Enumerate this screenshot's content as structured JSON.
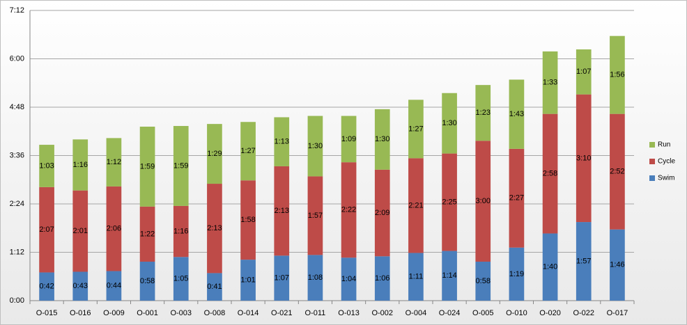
{
  "chart_data": {
    "type": "stacked_bar",
    "categories": [
      "O-015",
      "O-016",
      "O-009",
      "O-001",
      "O-003",
      "O-008",
      "O-014",
      "O-021",
      "O-011",
      "O-013",
      "O-002",
      "O-004",
      "O-024",
      "O-005",
      "O-010",
      "O-020",
      "O-022",
      "O-017"
    ],
    "series": [
      {
        "name": "Swim",
        "color": "#4a7ebb",
        "values": [
          42,
          43,
          44,
          58,
          65,
          41,
          61,
          67,
          68,
          64,
          66,
          71,
          74,
          58,
          79,
          100,
          117,
          106
        ],
        "value_labels": [
          "0:42",
          "0:43",
          "0:44",
          "0:58",
          "1:05",
          "0:41",
          "1:01",
          "1:07",
          "1:08",
          "1:04",
          "1:06",
          "1:11",
          "1:14",
          "0:58",
          "1:19",
          "1:40",
          "1:57",
          "1:46"
        ]
      },
      {
        "name": "Cycle",
        "color": "#be4b48",
        "values": [
          127,
          121,
          126,
          82,
          76,
          133,
          118,
          133,
          117,
          142,
          129,
          141,
          145,
          180,
          147,
          178,
          190,
          172
        ],
        "value_labels": [
          "2:07",
          "2:01",
          "2:06",
          "1:22",
          "1:16",
          "2:13",
          "1:58",
          "2:13",
          "1:57",
          "2:22",
          "2:09",
          "2:21",
          "2:25",
          "3:00",
          "2:27",
          "2:58",
          "3:10",
          "2:52"
        ]
      },
      {
        "name": "Run",
        "color": "#98b954",
        "values": [
          63,
          76,
          72,
          119,
          119,
          89,
          87,
          73,
          90,
          69,
          90,
          87,
          90,
          83,
          103,
          93,
          67,
          116
        ],
        "value_labels": [
          "1:03",
          "1:16",
          "1:12",
          "1:59",
          "1:59",
          "1:29",
          "1:27",
          "1:13",
          "1:30",
          "1:09",
          "1:30",
          "1:27",
          "1:30",
          "1:23",
          "1:43",
          "1:33",
          "1:07",
          "1:56"
        ]
      }
    ],
    "ylim": [
      0,
      432
    ],
    "yticks": [
      {
        "value": 0,
        "label": "0:00"
      },
      {
        "value": 72,
        "label": "1:12"
      },
      {
        "value": 144,
        "label": "2:24"
      },
      {
        "value": 216,
        "label": "3:36"
      },
      {
        "value": 288,
        "label": "4:48"
      },
      {
        "value": 360,
        "label": "6:00"
      },
      {
        "value": 432,
        "label": "7:12"
      }
    ],
    "grid": true,
    "legend": "right"
  }
}
